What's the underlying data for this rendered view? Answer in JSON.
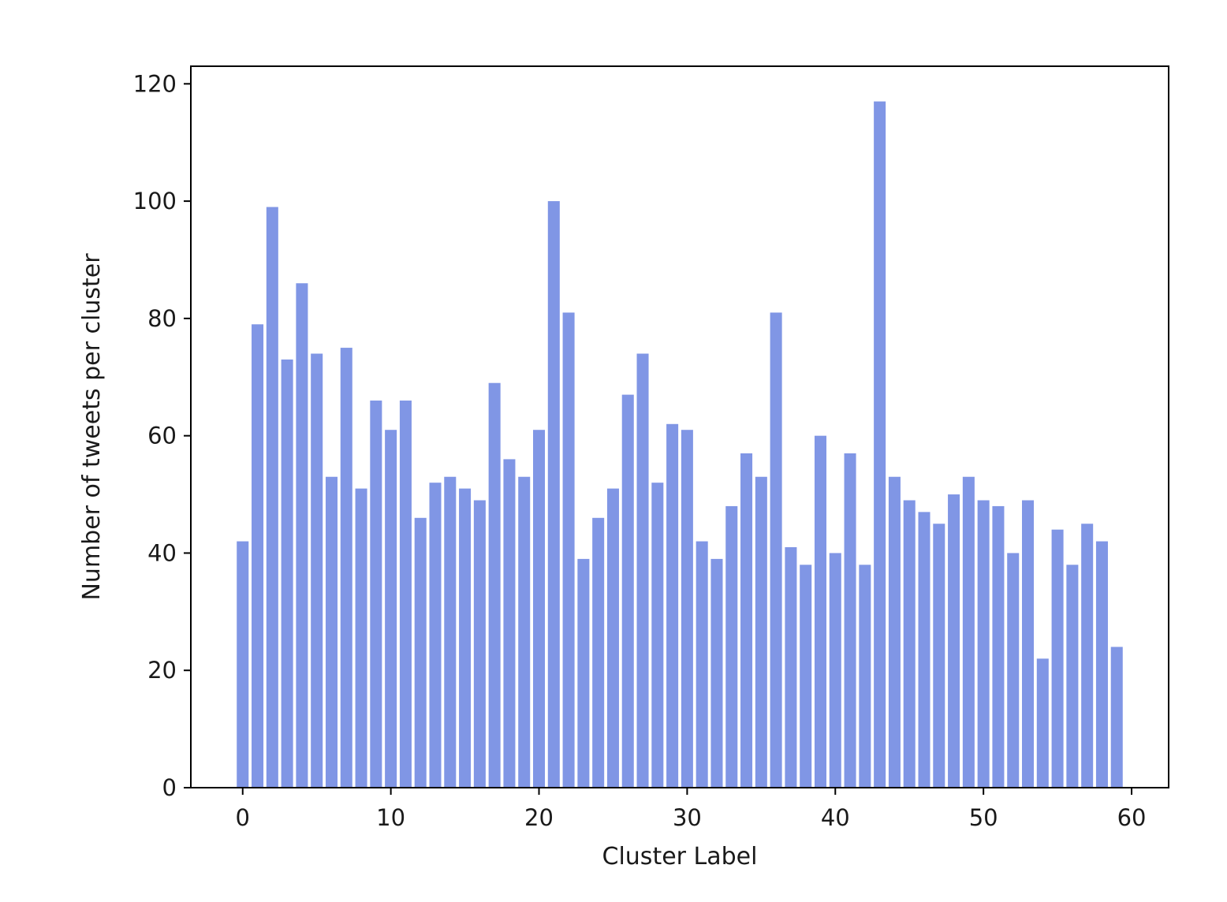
{
  "chart_data": {
    "type": "bar",
    "title": "",
    "xlabel": "Cluster Label",
    "ylabel": "Number of tweets per cluster",
    "bar_color": "#8096e5",
    "grid": false,
    "legend": "none",
    "xlim": [
      -3.5,
      62.5
    ],
    "ylim": [
      0,
      123
    ],
    "xticks": [
      0,
      10,
      20,
      30,
      40,
      50,
      60
    ],
    "yticks": [
      0,
      20,
      40,
      60,
      80,
      100,
      120
    ],
    "xtick_labels": [
      "0",
      "10",
      "20",
      "30",
      "40",
      "50",
      "60"
    ],
    "ytick_labels": [
      "0",
      "20",
      "40",
      "60",
      "80",
      "100",
      "120"
    ],
    "categories": [
      0,
      1,
      2,
      3,
      4,
      5,
      6,
      7,
      8,
      9,
      10,
      11,
      12,
      13,
      14,
      15,
      16,
      17,
      18,
      19,
      20,
      21,
      22,
      23,
      24,
      25,
      26,
      27,
      28,
      29,
      30,
      31,
      32,
      33,
      34,
      35,
      36,
      37,
      38,
      39,
      40,
      41,
      42,
      43,
      44,
      45,
      46,
      47,
      48,
      49,
      50,
      51,
      52,
      53,
      54,
      55,
      56,
      57,
      58,
      59
    ],
    "values": [
      42,
      79,
      99,
      73,
      86,
      74,
      53,
      75,
      51,
      66,
      61,
      66,
      46,
      52,
      53,
      51,
      49,
      69,
      56,
      53,
      61,
      100,
      81,
      39,
      46,
      51,
      67,
      74,
      52,
      62,
      61,
      42,
      39,
      48,
      57,
      53,
      81,
      41,
      38,
      60,
      40,
      57,
      38,
      117,
      53,
      49,
      47,
      45,
      50,
      53,
      49,
      48,
      40,
      49,
      22,
      44,
      38,
      45,
      42,
      24
    ]
  }
}
